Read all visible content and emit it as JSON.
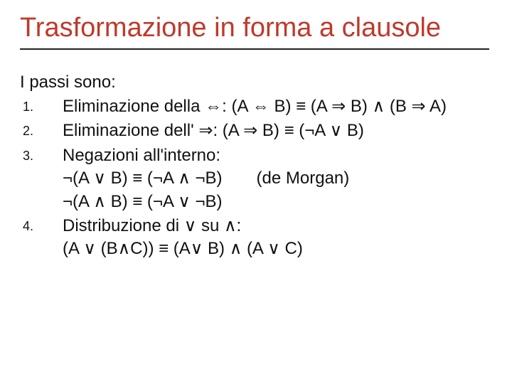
{
  "title_color": "#c0392b",
  "underline_color": "#222222",
  "text_color": "#111111",
  "background_color": "#ffffff",
  "title_fontsize": 38,
  "body_fontsize": 24,
  "number_fontsize": 18,
  "title": "Trasformazione in forma a clausole",
  "intro": "I passi sono:",
  "items": [
    {
      "num": "1.",
      "text": "Eliminazione della ⇔: (A ⇔ B) ≡ (A ⇒ B) ∧ (B ⇒ A)"
    },
    {
      "num": "2.",
      "text": "Eliminazione dell' ⇒: (A ⇒ B) ≡ (¬A ∨ B)"
    },
    {
      "num": "3.",
      "text": "Negazioni all'interno:\n¬(A ∨ B) ≡ (¬A ∧ ¬B)  (de Morgan)\n¬(A ∧ B) ≡ (¬A ∨ ¬B)"
    },
    {
      "num": "4.",
      "text": "Distribuzione di ∨ su ∧:\n(A ∨ (B∧C)) ≡ (A∨ B) ∧ (A ∨ C)"
    }
  ]
}
